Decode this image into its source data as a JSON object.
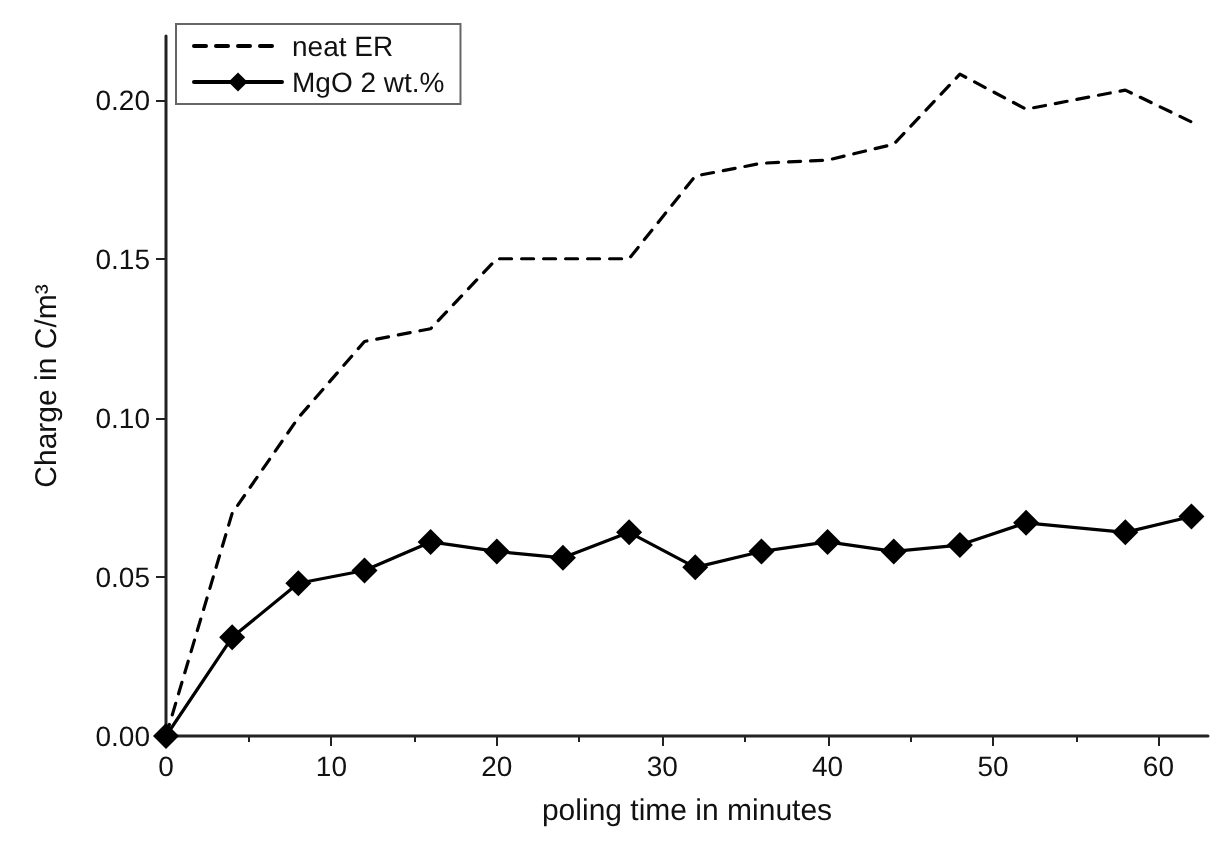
{
  "chart_data": {
    "type": "line",
    "xlabel": "poling time in minutes",
    "ylabel": "Charge in C/m³",
    "x": [
      0,
      4,
      8,
      12,
      16,
      20,
      24,
      28,
      32,
      36,
      40,
      44,
      48,
      52,
      58,
      62
    ],
    "series": [
      {
        "name": "neat ER",
        "color": "#000000",
        "line_style": "dashed",
        "marker": "none",
        "values": [
          0,
          0.07,
          0.1,
          0.124,
          0.128,
          0.15,
          0.15,
          0.15,
          0.176,
          0.18,
          0.181,
          0.186,
          0.208,
          0.197,
          0.203,
          0.193
        ]
      },
      {
        "name": "MgO 2 wt.%",
        "color": "#000000",
        "line_style": "solid",
        "marker": "diamond",
        "values": [
          0,
          0.031,
          0.048,
          0.052,
          0.061,
          0.058,
          0.056,
          0.064,
          0.053,
          0.058,
          0.061,
          0.058,
          0.06,
          0.067,
          0.064,
          0.069
        ]
      }
    ],
    "xlim": [
      0,
      63
    ],
    "xticks": [
      0,
      10,
      20,
      30,
      40,
      50,
      60
    ],
    "ylim": [
      0,
      0.22
    ],
    "yticks": [
      {
        "value": 0,
        "label": "0.00"
      },
      0.05,
      {
        "value": 0.1,
        "label": "0.10"
      },
      0.15,
      {
        "value": 0.2,
        "label": "0.20"
      }
    ],
    "grid": false,
    "legend": "top left"
  }
}
